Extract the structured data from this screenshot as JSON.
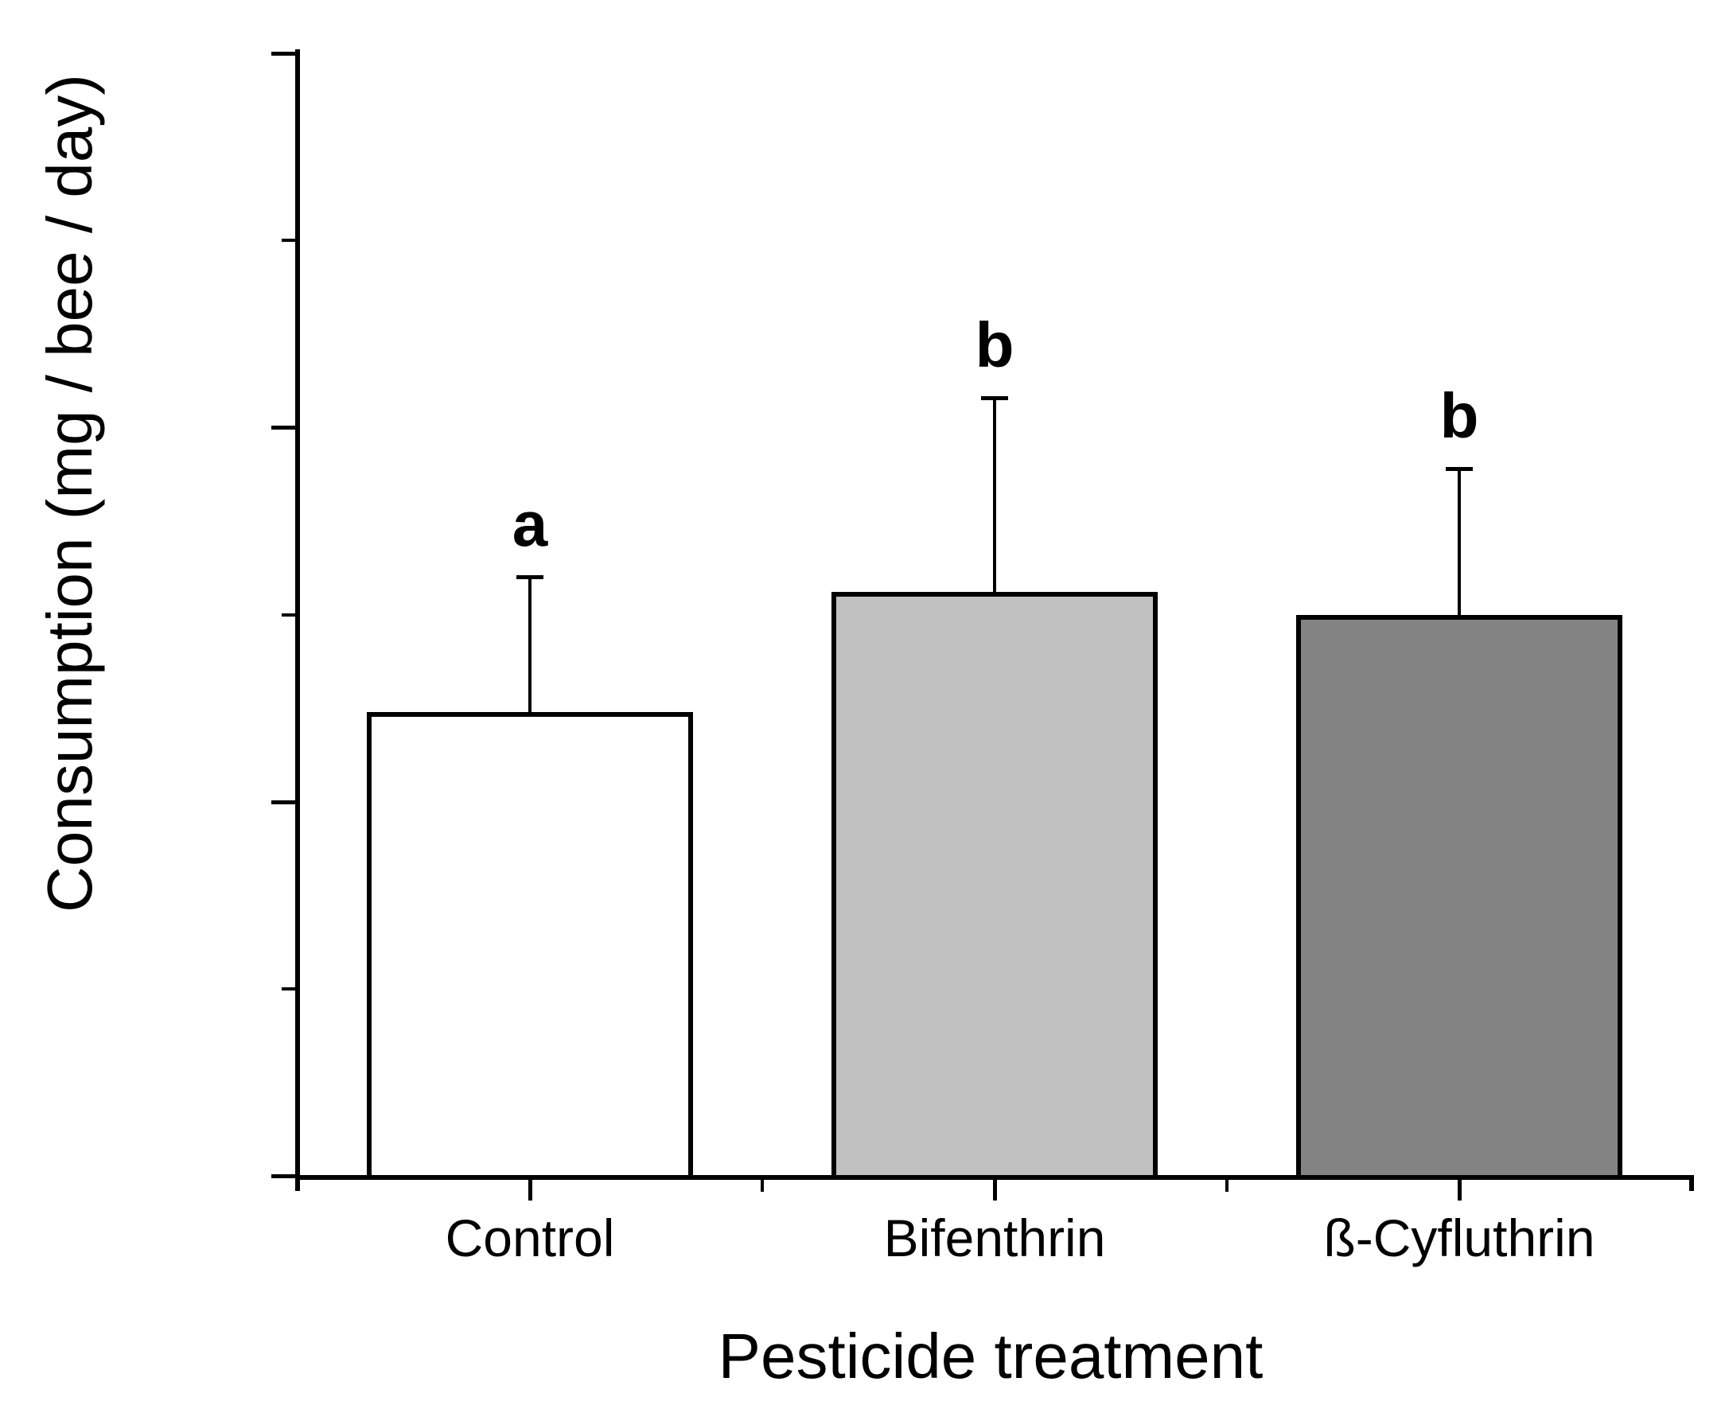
{
  "figure": {
    "background": "#ffffff",
    "ylabel": "Consumption (mg / bee / day)",
    "xlabel": "Pesticide treatment"
  },
  "chart_data": {
    "type": "bar",
    "title": "",
    "categories": [
      "Control",
      "Bifenthrin",
      "ß-Cyfluthrin"
    ],
    "values": [
      21.2,
      22.8,
      22.5
    ],
    "errors_upper": [
      1.8,
      2.6,
      1.95
    ],
    "sig_letters": [
      "a",
      "b",
      "b"
    ],
    "bar_fill_colors": [
      "#ffffff",
      "#c1c1c1",
      "#838383"
    ],
    "bar_border_color": "#000000",
    "xlabel": "Pesticide treatment",
    "ylabel": "Consumption (mg / bee / day)",
    "ylim": [
      15,
      30
    ],
    "yticks": [
      30,
      25,
      20,
      15
    ],
    "yticks_minor": [
      27.5,
      22.5,
      17.5
    ],
    "grid": false,
    "legend": false,
    "error_bars": "upper only, black caps"
  }
}
